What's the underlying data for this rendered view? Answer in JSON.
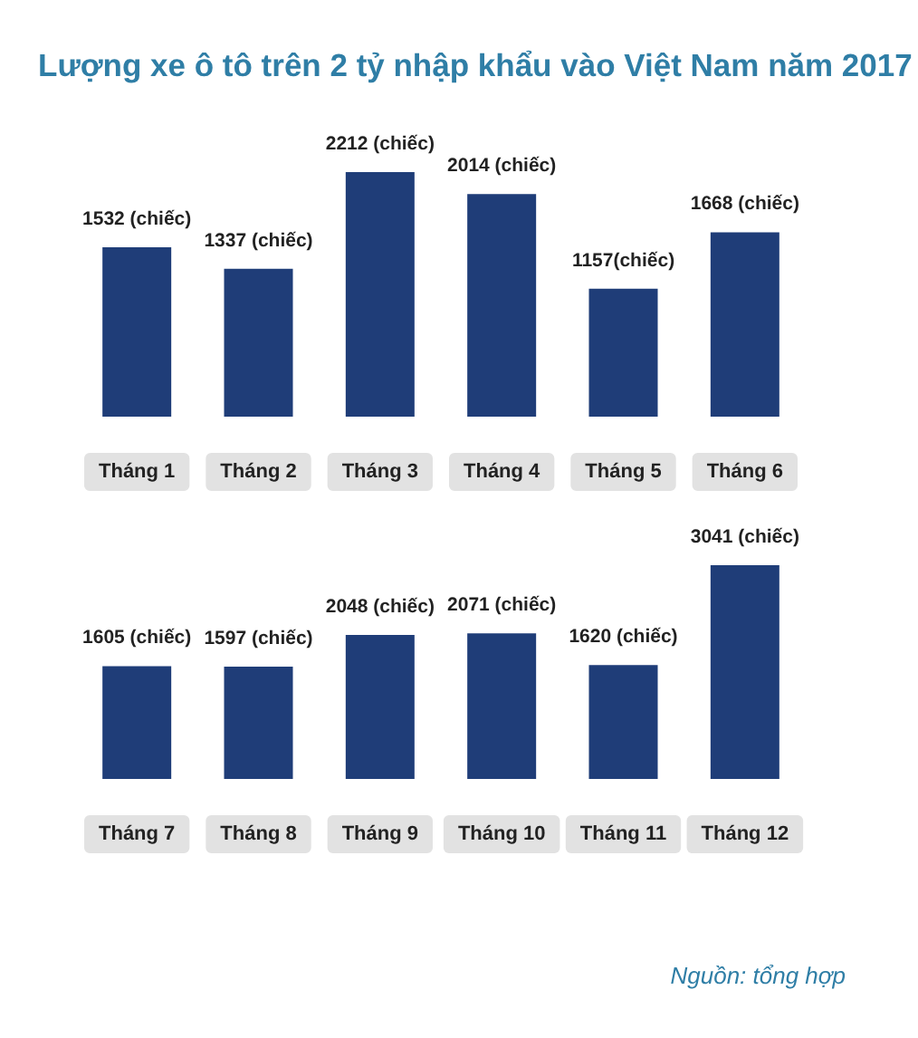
{
  "chart_data": [
    {
      "type": "bar",
      "title": "Lượng xe ô tô trên 2 tỷ nhập khẩu vào Việt Nam năm 2017",
      "categories": [
        "Tháng 1",
        "Tháng 2",
        "Tháng 3",
        "Tháng 4",
        "Tháng 5",
        "Tháng 6"
      ],
      "values": [
        1532,
        1337,
        2212,
        2014,
        1157,
        1668
      ],
      "value_labels": [
        "1532 (chiếc)",
        "1337 (chiếc)",
        "2212 (chiếc)",
        "2014 (chiếc)",
        "1157(chiếc)",
        "1668 (chiếc)"
      ],
      "color": "#1f3d78",
      "tick_labels": "x"
    },
    {
      "type": "bar",
      "categories": [
        "Tháng 7",
        "Tháng 8",
        "Tháng 9",
        "Tháng 10",
        "Tháng 11",
        "Tháng 12"
      ],
      "values": [
        1605,
        1597,
        2048,
        2071,
        1620,
        3041
      ],
      "value_labels": [
        "1605 (chiếc)",
        "1597 (chiếc)",
        "2048 (chiếc)",
        "2071 (chiếc)",
        "1620 (chiếc)",
        "3041 (chiếc)"
      ],
      "color": "#1f3d78",
      "tick_labels": "x",
      "annotations": [
        "Nguồn: tổng hợp"
      ]
    }
  ]
}
